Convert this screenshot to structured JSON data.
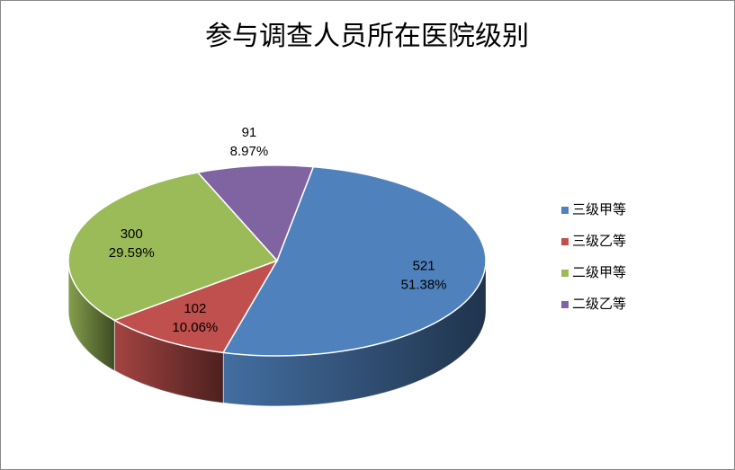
{
  "chart_data": {
    "type": "pie3d",
    "title": "参与调查人员所在医院级别",
    "categories": [
      "三级甲等",
      "三级乙等",
      "二级甲等",
      "二级乙等"
    ],
    "values": [
      521,
      102,
      300,
      91
    ],
    "percent_labels": [
      "51.38%",
      "10.06%",
      "29.59%",
      "8.97%"
    ],
    "colors": [
      "#4f81bd",
      "#c0504d",
      "#9bbb59",
      "#8064a2"
    ],
    "legend": "right"
  }
}
